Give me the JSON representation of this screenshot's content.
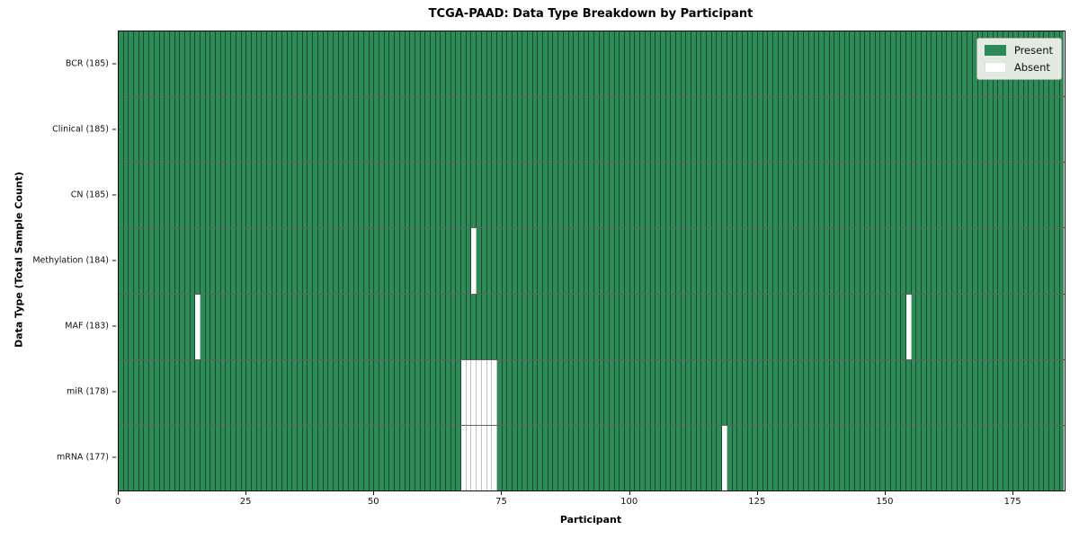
{
  "title": "TCGA-PAAD: Data Type Breakdown by Participant",
  "x_axis": {
    "label": "Participant",
    "ticks": [
      0,
      25,
      50,
      75,
      100,
      125,
      150,
      175
    ],
    "range": [
      0,
      185
    ]
  },
  "y_axis": {
    "label": "Data Type (Total Sample Count)"
  },
  "legend": {
    "present_label": "Present",
    "absent_label": "Absent"
  },
  "colors": {
    "present": "#2e8b57",
    "absent": "#ffffff"
  },
  "chart_data": {
    "type": "heatmap",
    "title": "TCGA-PAAD: Data Type Breakdown by Participant",
    "xlabel": "Participant",
    "ylabel": "Data Type (Total Sample Count)",
    "x_range": [
      0,
      185
    ],
    "x_ticks": [
      0,
      25,
      50,
      75,
      100,
      125,
      150,
      175
    ],
    "n_participants": 185,
    "legend_position": "upper right",
    "legend_entries": [
      "Present",
      "Absent"
    ],
    "value_encoding": {
      "present": 1,
      "absent": 0
    },
    "rows": [
      {
        "label": "BCR (185)",
        "data_type": "BCR",
        "total_samples": 185,
        "absent_participants": []
      },
      {
        "label": "Clinical (185)",
        "data_type": "Clinical",
        "total_samples": 185,
        "absent_participants": []
      },
      {
        "label": "CN (185)",
        "data_type": "CN",
        "total_samples": 185,
        "absent_participants": []
      },
      {
        "label": "Methylation (184)",
        "data_type": "Methylation",
        "total_samples": 184,
        "absent_participants": [
          69
        ]
      },
      {
        "label": "MAF (183)",
        "data_type": "MAF",
        "total_samples": 183,
        "absent_participants": [
          15,
          154
        ]
      },
      {
        "label": "miR (178)",
        "data_type": "miR",
        "total_samples": 178,
        "absent_participants": [
          67,
          68,
          69,
          70,
          71,
          72,
          73
        ]
      },
      {
        "label": "mRNA (177)",
        "data_type": "mRNA",
        "total_samples": 177,
        "absent_participants": [
          67,
          68,
          69,
          70,
          71,
          72,
          73,
          118
        ]
      }
    ]
  }
}
